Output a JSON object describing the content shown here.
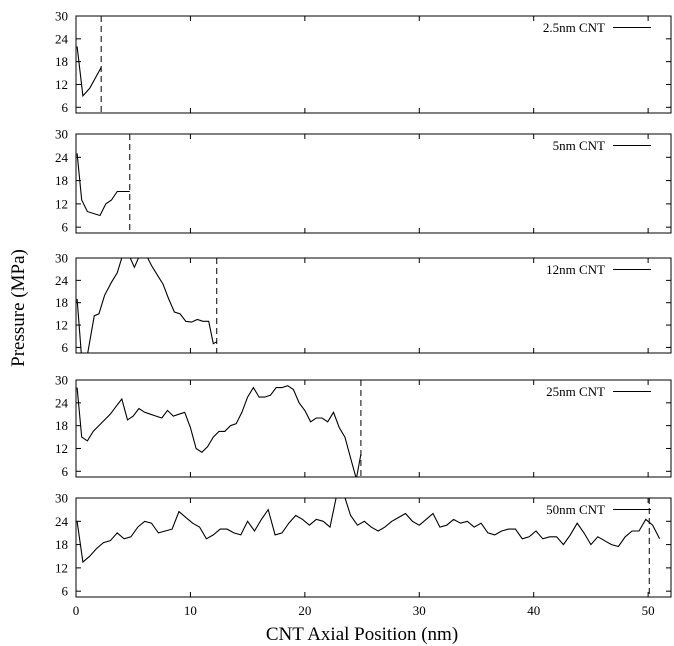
{
  "chart_data": {
    "type": "line",
    "xlabel": "CNT Axial Position (nm)",
    "ylabel": "Pressure (MPa)",
    "x_ticks": [
      0,
      10,
      20,
      30,
      40,
      50
    ],
    "xlim": [
      0,
      52
    ],
    "y_ticks": [
      6,
      12,
      18,
      24,
      30
    ],
    "ylim": [
      4.5,
      30
    ],
    "grid": false,
    "legend_position": "top-right",
    "panels": [
      {
        "name": "2.5nm CNT",
        "cnt_end": 2.2,
        "points": [
          [
            0.1,
            22
          ],
          [
            0.6,
            9
          ],
          [
            1.2,
            11
          ],
          [
            2.2,
            16.5
          ]
        ]
      },
      {
        "name": "5nm CNT",
        "cnt_end": 4.7,
        "points": [
          [
            0.1,
            25
          ],
          [
            0.5,
            13
          ],
          [
            1.0,
            10
          ],
          [
            2.1,
            9
          ],
          [
            2.6,
            12
          ],
          [
            3.1,
            13
          ],
          [
            3.6,
            15.2
          ],
          [
            4.3,
            15.2
          ],
          [
            4.7,
            15.2
          ]
        ]
      },
      {
        "name": "12nm CNT",
        "cnt_end": 12.3,
        "points": [
          [
            0.1,
            19
          ],
          [
            0.5,
            3
          ],
          [
            1.0,
            4
          ],
          [
            1.6,
            14.5
          ],
          [
            2.0,
            15
          ],
          [
            2.5,
            20
          ],
          [
            3.1,
            23.5
          ],
          [
            3.6,
            26
          ],
          [
            4.1,
            31
          ],
          [
            4.6,
            31
          ],
          [
            5.1,
            27.5
          ],
          [
            5.6,
            31
          ],
          [
            6.1,
            31
          ],
          [
            6.6,
            28
          ],
          [
            7.1,
            25.5
          ],
          [
            7.6,
            23
          ],
          [
            8.1,
            19
          ],
          [
            8.6,
            15.5
          ],
          [
            9.1,
            15
          ],
          [
            9.6,
            13
          ],
          [
            10.1,
            12.8
          ],
          [
            10.6,
            13.5
          ],
          [
            11.1,
            13
          ],
          [
            11.6,
            13
          ],
          [
            12.0,
            7
          ],
          [
            12.3,
            7.5
          ]
        ]
      },
      {
        "name": "25nm CNT",
        "cnt_end": 24.9,
        "points": [
          [
            0.1,
            28
          ],
          [
            0.5,
            15
          ],
          [
            1.0,
            14
          ],
          [
            1.5,
            16.5
          ],
          [
            2.0,
            18
          ],
          [
            2.5,
            19.5
          ],
          [
            3.0,
            21
          ],
          [
            3.5,
            23
          ],
          [
            4.0,
            25
          ],
          [
            4.5,
            19.5
          ],
          [
            5.0,
            20.5
          ],
          [
            5.5,
            22.5
          ],
          [
            6.0,
            21.5
          ],
          [
            6.5,
            21
          ],
          [
            7.0,
            20.5
          ],
          [
            7.5,
            20
          ],
          [
            8.0,
            22
          ],
          [
            8.5,
            20.5
          ],
          [
            9.0,
            21
          ],
          [
            9.5,
            21.5
          ],
          [
            10.0,
            17.5
          ],
          [
            10.5,
            12
          ],
          [
            11.0,
            11
          ],
          [
            11.5,
            12.5
          ],
          [
            12.0,
            15
          ],
          [
            12.5,
            16.5
          ],
          [
            13.0,
            16.5
          ],
          [
            13.5,
            18
          ],
          [
            14.0,
            18.5
          ],
          [
            14.5,
            21.5
          ],
          [
            15.0,
            25.5
          ],
          [
            15.5,
            28
          ],
          [
            16.0,
            25.5
          ],
          [
            16.5,
            25.5
          ],
          [
            17.0,
            26
          ],
          [
            17.5,
            28
          ],
          [
            18.0,
            28
          ],
          [
            18.5,
            28.5
          ],
          [
            19.0,
            27.5
          ],
          [
            19.5,
            24
          ],
          [
            20.0,
            22
          ],
          [
            20.5,
            19
          ],
          [
            21.0,
            20
          ],
          [
            21.5,
            20
          ],
          [
            22.0,
            19
          ],
          [
            22.5,
            21.5
          ],
          [
            23.0,
            17.5
          ],
          [
            23.5,
            15
          ],
          [
            24.0,
            9.5
          ],
          [
            24.5,
            4
          ],
          [
            24.9,
            10.5
          ]
        ]
      },
      {
        "name": "50nm CNT",
        "cnt_end": 50.1,
        "points": [
          [
            0.1,
            24
          ],
          [
            0.6,
            13.5
          ],
          [
            1.2,
            15
          ],
          [
            1.8,
            17
          ],
          [
            2.4,
            18.5
          ],
          [
            3.0,
            19
          ],
          [
            3.6,
            21
          ],
          [
            4.2,
            19.5
          ],
          [
            4.8,
            20
          ],
          [
            5.4,
            22.5
          ],
          [
            6.0,
            24
          ],
          [
            6.6,
            23.5
          ],
          [
            7.2,
            21
          ],
          [
            7.8,
            21.5
          ],
          [
            8.4,
            22
          ],
          [
            9.0,
            26.5
          ],
          [
            9.6,
            25
          ],
          [
            10.2,
            23.5
          ],
          [
            10.8,
            22.5
          ],
          [
            11.4,
            19.5
          ],
          [
            12.0,
            20.5
          ],
          [
            12.6,
            22
          ],
          [
            13.2,
            22
          ],
          [
            13.8,
            21
          ],
          [
            14.4,
            20.5
          ],
          [
            15.0,
            24
          ],
          [
            15.6,
            21.5
          ],
          [
            16.2,
            24.5
          ],
          [
            16.8,
            27
          ],
          [
            17.4,
            20.5
          ],
          [
            18.0,
            21
          ],
          [
            18.6,
            23.5
          ],
          [
            19.2,
            25.5
          ],
          [
            19.8,
            24.5
          ],
          [
            20.4,
            23
          ],
          [
            21.0,
            24.5
          ],
          [
            21.6,
            24
          ],
          [
            22.2,
            22.5
          ],
          [
            22.8,
            31
          ],
          [
            23.4,
            31
          ],
          [
            24.0,
            25.5
          ],
          [
            24.6,
            23
          ],
          [
            25.2,
            24
          ],
          [
            25.8,
            22.5
          ],
          [
            26.4,
            21.5
          ],
          [
            27.0,
            22.5
          ],
          [
            27.6,
            24
          ],
          [
            28.2,
            25
          ],
          [
            28.8,
            26
          ],
          [
            29.4,
            24
          ],
          [
            30.0,
            23
          ],
          [
            30.6,
            24.5
          ],
          [
            31.2,
            26
          ],
          [
            31.8,
            22.5
          ],
          [
            32.4,
            23
          ],
          [
            33.0,
            24.5
          ],
          [
            33.6,
            23.5
          ],
          [
            34.2,
            24
          ],
          [
            34.8,
            22.5
          ],
          [
            35.4,
            23.5
          ],
          [
            36.0,
            21
          ],
          [
            36.6,
            20.5
          ],
          [
            37.2,
            21.5
          ],
          [
            37.8,
            22
          ],
          [
            38.4,
            22
          ],
          [
            39.0,
            19.5
          ],
          [
            39.6,
            20
          ],
          [
            40.2,
            21.5
          ],
          [
            40.8,
            19.5
          ],
          [
            41.4,
            20
          ],
          [
            42.0,
            20
          ],
          [
            42.6,
            18
          ],
          [
            43.2,
            20.5
          ],
          [
            43.8,
            23.5
          ],
          [
            44.4,
            21
          ],
          [
            45.0,
            18
          ],
          [
            45.6,
            20
          ],
          [
            46.2,
            19
          ],
          [
            46.8,
            18
          ],
          [
            47.4,
            17.5
          ],
          [
            48.0,
            20
          ],
          [
            48.6,
            21.5
          ],
          [
            49.2,
            21.5
          ],
          [
            49.8,
            24.5
          ],
          [
            50.4,
            23
          ],
          [
            51.0,
            19.5
          ]
        ]
      }
    ]
  }
}
